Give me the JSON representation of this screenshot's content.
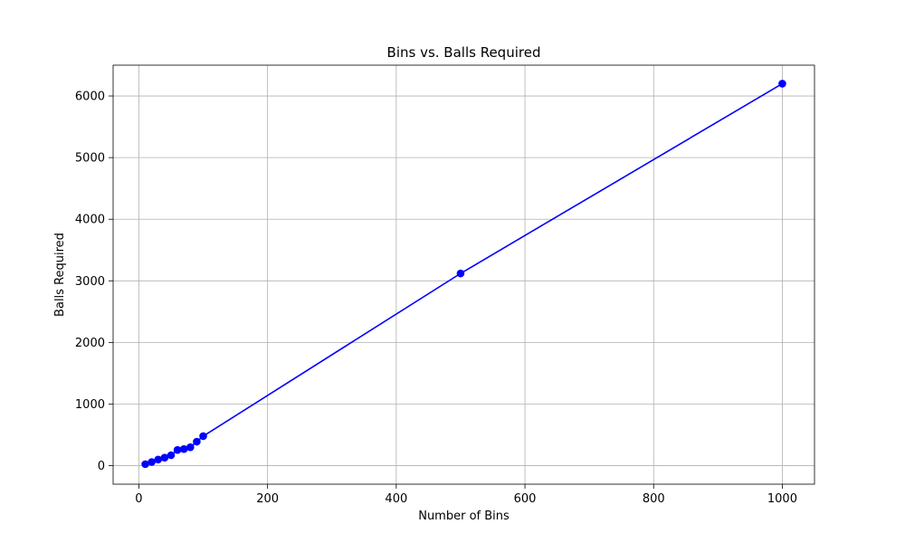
{
  "chart_data": {
    "type": "line",
    "title": "Bins vs. Balls Required",
    "xlabel": "Number of Bins",
    "ylabel": "Balls Required",
    "xlim": [
      -40,
      1050
    ],
    "ylim": [
      -300,
      6500
    ],
    "xticks": [
      0,
      200,
      400,
      600,
      800,
      1000
    ],
    "yticks": [
      0,
      1000,
      2000,
      3000,
      4000,
      5000,
      6000
    ],
    "grid": true,
    "series": [
      {
        "color": "#0000ff",
        "marker": "circle",
        "x": [
          10,
          20,
          30,
          40,
          50,
          60,
          70,
          80,
          90,
          100,
          500,
          1000
        ],
        "y": [
          25,
          60,
          100,
          130,
          170,
          255,
          270,
          300,
          390,
          480,
          3120,
          6200
        ]
      }
    ]
  }
}
